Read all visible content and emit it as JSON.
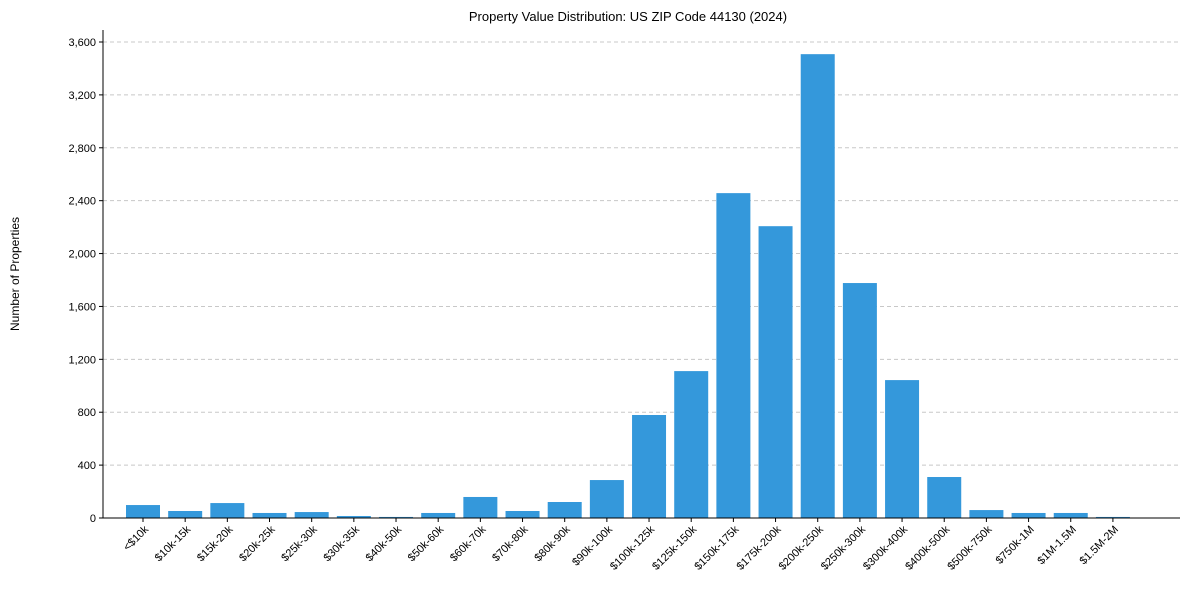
{
  "chart_data": {
    "type": "bar",
    "title": "Property Value Distribution: US ZIP Code 44130 (2024)",
    "xlabel": "",
    "ylabel": "Number of Properties",
    "ylim": [
      0,
      3700
    ],
    "yticks": [
      0,
      400,
      800,
      1200,
      1600,
      2000,
      2400,
      2800,
      3200,
      3600
    ],
    "ytick_labels": [
      "0",
      "400",
      "800",
      "1,200",
      "1,600",
      "2,000",
      "2,400",
      "2,800",
      "3,200",
      "3,600"
    ],
    "grid": "y-dashed",
    "bar_color": "#3498db",
    "categories": [
      "<$10k",
      "$10k-15k",
      "$15k-20k",
      "$20k-25k",
      "$25k-30k",
      "$30k-35k",
      "$40k-50k",
      "$50k-60k",
      "$60k-70k",
      "$70k-80k",
      "$80k-90k",
      "$90k-100k",
      "$100k-125k",
      "$125k-150k",
      "$150k-175k",
      "$175k-200k",
      "$200k-250k",
      "$250k-300k",
      "$300k-400k",
      "$400k-500k",
      "$500k-750k",
      "$750k-1M",
      "$1M-1.5M",
      "$1.5M-2M"
    ],
    "values": [
      98,
      53,
      113,
      38,
      45,
      15,
      8,
      38,
      159,
      53,
      121,
      287,
      779,
      1111,
      2457,
      2207,
      3508,
      1777,
      1043,
      310,
      60,
      38,
      38,
      8
    ]
  }
}
